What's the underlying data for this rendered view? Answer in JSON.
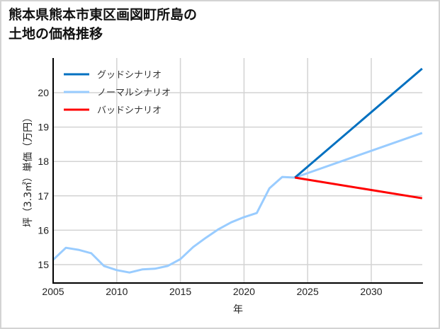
{
  "title": "熊本県熊本市東区画図町所島の\n土地の価格推移",
  "chart_data": {
    "type": "line",
    "title": "熊本県熊本市東区画図町所島の土地の価格推移",
    "xlabel": "年",
    "ylabel": "坪（3.3㎡）単価（万円）",
    "xlim": [
      2005,
      2034
    ],
    "ylim": [
      14.5,
      21.0
    ],
    "xticks": [
      2005,
      2010,
      2015,
      2020,
      2025,
      2030
    ],
    "yticks": [
      15,
      16,
      17,
      18,
      19,
      20
    ],
    "grid": true,
    "legend_position": "upper left",
    "series": [
      {
        "name": "グッドシナリオ",
        "color": "#0070c0",
        "x": [
          2024,
          2034
        ],
        "values": [
          17.53,
          20.7
        ]
      },
      {
        "name": "ノーマルシナリオ",
        "color": "#99ccff",
        "x": [
          2005,
          2006,
          2007,
          2008,
          2009,
          2010,
          2011,
          2012,
          2013,
          2014,
          2015,
          2016,
          2017,
          2018,
          2019,
          2020,
          2021,
          2022,
          2023,
          2024,
          2034
        ],
        "values": [
          15.14,
          15.49,
          15.43,
          15.33,
          14.96,
          14.84,
          14.77,
          14.86,
          14.88,
          14.96,
          15.16,
          15.51,
          15.78,
          16.03,
          16.23,
          16.38,
          16.5,
          17.22,
          17.55,
          17.53,
          18.83
        ]
      },
      {
        "name": "バッドシナリオ",
        "color": "#ff0000",
        "x": [
          2024,
          2034
        ],
        "values": [
          17.53,
          16.93
        ]
      }
    ]
  },
  "legend": {
    "good": "グッドシナリオ",
    "normal": "ノーマルシナリオ",
    "bad": "バッドシナリオ"
  },
  "axes": {
    "xlabel": "年",
    "ylabel": "坪（3.3㎡）単価（万円）",
    "xticks": [
      "2005",
      "2010",
      "2015",
      "2020",
      "2025",
      "2030"
    ],
    "yticks": [
      "15",
      "16",
      "17",
      "18",
      "19",
      "20"
    ]
  }
}
